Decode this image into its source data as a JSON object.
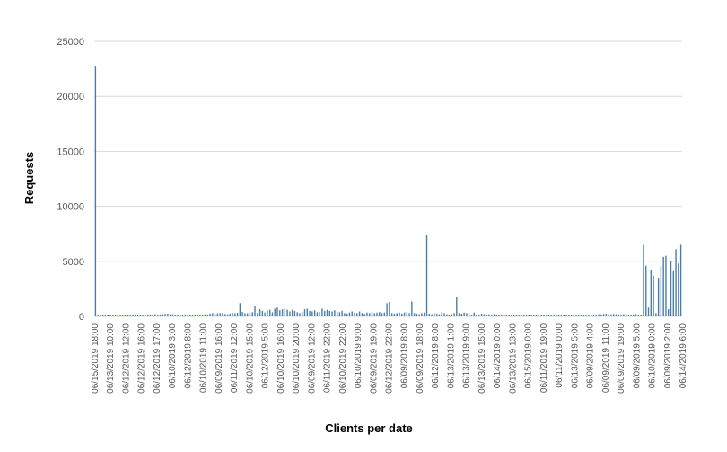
{
  "chart_data": {
    "type": "bar",
    "xlabel": "Clients per date",
    "ylabel": "Requests",
    "ylim": [
      0,
      25000
    ],
    "yticks": [
      0,
      5000,
      10000,
      15000,
      20000,
      25000
    ],
    "grid": true,
    "legend": "none",
    "bar_color": "#4a7eaa",
    "tick_labels": [
      "06/15/2019 18:00",
      "06/13/2019 10:00",
      "06/12/2019 12:00",
      "06/12/2019 16:00",
      "06/12/2019 17:00",
      "06/10/2019 3:00",
      "06/12/2019 8:00",
      "06/10/2019 11:00",
      "06/09/2019 16:00",
      "06/11/2019 12:00",
      "06/10/2019 15:00",
      "06/12/2019 5:00",
      "06/10/2019 16:00",
      "06/10/2019 20:00",
      "06/09/2019 12:00",
      "06/11/2019 22:00",
      "06/10/2019 22:00",
      "06/10/2019 9:00",
      "06/09/2019 19:00",
      "06/12/2019 22:00",
      "06/09/2019 8:00",
      "06/09/2019 18:00",
      "06/12/2019 8:00",
      "06/13/2019 1:00",
      "06/13/2019 9:00",
      "06/13/2019 15:00",
      "06/14/2019 0:00",
      "06/13/2019 13:00",
      "06/15/2019 0:00",
      "06/11/2019 19:00",
      "06/11/2019 0:00",
      "06/13/2019 5:00",
      "06/09/2019 4:00",
      "06/09/2019 11:00",
      "06/09/2019 19:00",
      "06/09/2019 5:00",
      "06/10/2019 0:00",
      "06/09/2019 2:00",
      "06/14/2019 6:00"
    ],
    "values": [
      22700,
      150,
      120,
      100,
      130,
      110,
      150,
      120,
      100,
      110,
      140,
      160,
      150,
      150,
      160,
      170,
      160,
      150,
      120,
      100,
      150,
      180,
      180,
      190,
      200,
      150,
      180,
      210,
      230,
      250,
      200,
      180,
      160,
      130,
      120,
      140,
      130,
      150,
      140,
      120,
      180,
      130,
      110,
      120,
      200,
      130,
      260,
      300,
      250,
      280,
      300,
      310,
      220,
      190,
      260,
      300,
      280,
      320,
      1200,
      400,
      300,
      280,
      350,
      380,
      900,
      300,
      650,
      500,
      350,
      550,
      600,
      380,
      700,
      800,
      550,
      650,
      700,
      600,
      450,
      600,
      500,
      380,
      300,
      400,
      650,
      700,
      500,
      450,
      550,
      380,
      400,
      700,
      500,
      600,
      500,
      450,
      550,
      420,
      380,
      500,
      300,
      250,
      350,
      450,
      350,
      300,
      450,
      300,
      250,
      350,
      300,
      400,
      300,
      350,
      400,
      300,
      350,
      1200,
      1300,
      300,
      250,
      300,
      350,
      250,
      350,
      400,
      300,
      1350,
      300,
      250,
      200,
      300,
      350,
      7400,
      250,
      200,
      300,
      250,
      200,
      350,
      300,
      200,
      150,
      200,
      300,
      1800,
      300,
      250,
      350,
      300,
      200,
      150,
      350,
      200,
      150,
      250,
      200,
      150,
      200,
      150,
      200,
      120,
      100,
      150,
      120,
      100,
      130,
      110,
      100,
      120,
      100,
      140,
      120,
      100,
      110,
      130,
      120,
      100,
      110,
      130,
      100,
      120,
      110,
      100,
      130,
      120,
      110,
      100,
      120,
      130,
      110,
      100,
      120,
      110,
      100,
      130,
      120,
      110,
      100,
      120,
      110,
      150,
      200,
      180,
      220,
      250,
      200,
      180,
      220,
      200,
      180,
      160,
      200,
      180,
      160,
      150,
      180,
      200,
      150,
      150,
      6500,
      4600,
      800,
      4200,
      3700,
      300,
      3500,
      4600,
      5400,
      5500,
      650,
      5000,
      4100,
      6100,
      4800,
      6500
    ]
  }
}
